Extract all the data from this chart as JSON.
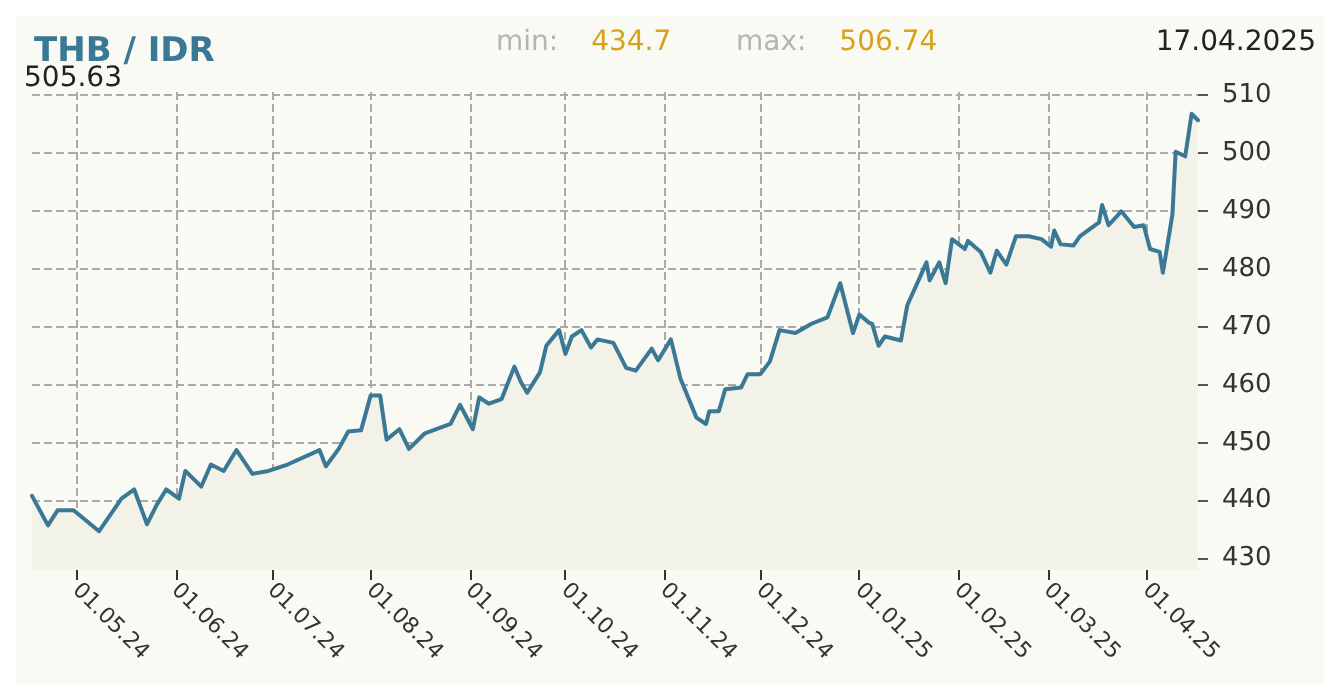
{
  "chart_data": {
    "type": "area",
    "title": "THB / IDR",
    "annotations": [
      "min: 434.7",
      "max: 506.74",
      "17.04.2025",
      "505.63"
    ],
    "x": [
      "2024-04-17",
      "2024-04-22",
      "2024-04-25",
      "2024-04-30",
      "2024-05-08",
      "2024-05-15",
      "2024-05-19",
      "2024-05-23",
      "2024-05-26",
      "2024-05-29",
      "2024-06-02",
      "2024-06-04",
      "2024-06-09",
      "2024-06-12",
      "2024-06-16",
      "2024-06-20",
      "2024-06-25",
      "2024-06-30",
      "2024-07-06",
      "2024-07-16",
      "2024-07-18",
      "2024-07-22",
      "2024-07-25",
      "2024-07-29",
      "2024-08-01",
      "2024-08-04",
      "2024-08-06",
      "2024-08-10",
      "2024-08-13",
      "2024-08-18",
      "2024-08-26",
      "2024-08-29",
      "2024-09-02",
      "2024-09-04",
      "2024-09-07",
      "2024-09-11",
      "2024-09-15",
      "2024-09-17",
      "2024-09-19",
      "2024-09-23",
      "2024-09-25",
      "2024-09-29",
      "2024-10-01",
      "2024-10-03",
      "2024-10-06",
      "2024-10-09",
      "2024-10-11",
      "2024-10-16",
      "2024-10-20",
      "2024-10-23",
      "2024-10-28",
      "2024-10-30",
      "2024-11-03",
      "2024-11-06",
      "2024-11-11",
      "2024-11-14",
      "2024-11-15",
      "2024-11-18",
      "2024-11-20",
      "2024-11-25",
      "2024-11-27",
      "2024-12-01",
      "2024-12-04",
      "2024-12-07",
      "2024-12-12",
      "2024-12-17",
      "2024-12-22",
      "2024-12-26",
      "2024-12-30",
      "2025-01-01",
      "2025-01-04",
      "2025-01-05",
      "2025-01-07",
      "2025-01-09",
      "2025-01-14",
      "2025-01-16",
      "2025-01-20",
      "2025-01-22",
      "2025-01-23",
      "2025-01-26",
      "2025-01-28",
      "2025-01-30",
      "2025-02-03",
      "2025-02-04",
      "2025-02-08",
      "2025-02-11",
      "2025-02-13",
      "2025-02-16",
      "2025-02-19",
      "2025-02-23",
      "2025-02-27",
      "2025-03-02",
      "2025-03-03",
      "2025-03-05",
      "2025-03-09",
      "2025-03-11",
      "2025-03-17",
      "2025-03-18",
      "2025-03-20",
      "2025-03-24",
      "2025-03-28",
      "2025-03-31",
      "2025-04-02",
      "2025-04-05",
      "2025-04-06",
      "2025-04-09",
      "2025-04-10",
      "2025-04-13",
      "2025-04-15",
      "2025-04-17"
    ],
    "series": [
      {
        "color": "#3a7896",
        "values": [
          440.8,
          435.7,
          438.3,
          438.3,
          434.7,
          440.3,
          441.9,
          435.9,
          439.2,
          441.9,
          440.3,
          445.1,
          442.4,
          446.2,
          445.1,
          448.7,
          444.6,
          445.1,
          446.2,
          448.7,
          445.9,
          448.9,
          451.9,
          452.1,
          458.1,
          458.1,
          450.5,
          452.3,
          448.9,
          451.6,
          453.2,
          456.5,
          452.3,
          457.8,
          456.7,
          457.5,
          463.1,
          460.5,
          458.6,
          462.1,
          466.7,
          469.4,
          465.3,
          468.3,
          469.4,
          466.4,
          467.8,
          467.2,
          462.9,
          462.4,
          466.2,
          464.2,
          467.8,
          461.0,
          454.3,
          453.2,
          455.4,
          455.4,
          459.2,
          459.5,
          461.8,
          461.8,
          464.0,
          469.4,
          468.9,
          470.5,
          471.6,
          477.5,
          468.9,
          472.1,
          470.7,
          470.5,
          466.7,
          468.3,
          467.6,
          473.7,
          478.6,
          481.1,
          478.0,
          481.1,
          477.5,
          485.1,
          483.4,
          484.8,
          482.9,
          479.3,
          483.1,
          480.7,
          485.6,
          485.6,
          485.1,
          483.8,
          486.6,
          484.2,
          484.0,
          485.6,
          488.0,
          491.0,
          487.5,
          489.9,
          487.2,
          487.5,
          483.4,
          482.9,
          479.3,
          489.4,
          500.2,
          499.4,
          506.74,
          505.63
        ]
      }
    ],
    "xlim": [
      "2024-04-17",
      "2025-04-17"
    ],
    "xticks": [
      {
        "value": "2024-05-01",
        "label": "01.05.24"
      },
      {
        "value": "2024-06-01",
        "label": "01.06.24"
      },
      {
        "value": "2024-07-01",
        "label": "01.07.24"
      },
      {
        "value": "2024-08-01",
        "label": "01.08.24"
      },
      {
        "value": "2024-09-01",
        "label": "01.09.24"
      },
      {
        "value": "2024-10-01",
        "label": "01.10.24"
      },
      {
        "value": "2024-11-01",
        "label": "01.11.24"
      },
      {
        "value": "2024-12-01",
        "label": "01.12.24"
      },
      {
        "value": "2025-01-01",
        "label": "01.01.25"
      },
      {
        "value": "2025-02-01",
        "label": "01.02.25"
      },
      {
        "value": "2025-03-01",
        "label": "01.03.25"
      },
      {
        "value": "2025-04-01",
        "label": "01.04.25"
      }
    ],
    "ylim": [
      428,
      510.5
    ],
    "yticks": [
      430,
      440,
      450,
      460,
      470,
      480,
      490,
      500,
      510
    ],
    "grid": true,
    "marker": "none",
    "line_style": "solid"
  }
}
